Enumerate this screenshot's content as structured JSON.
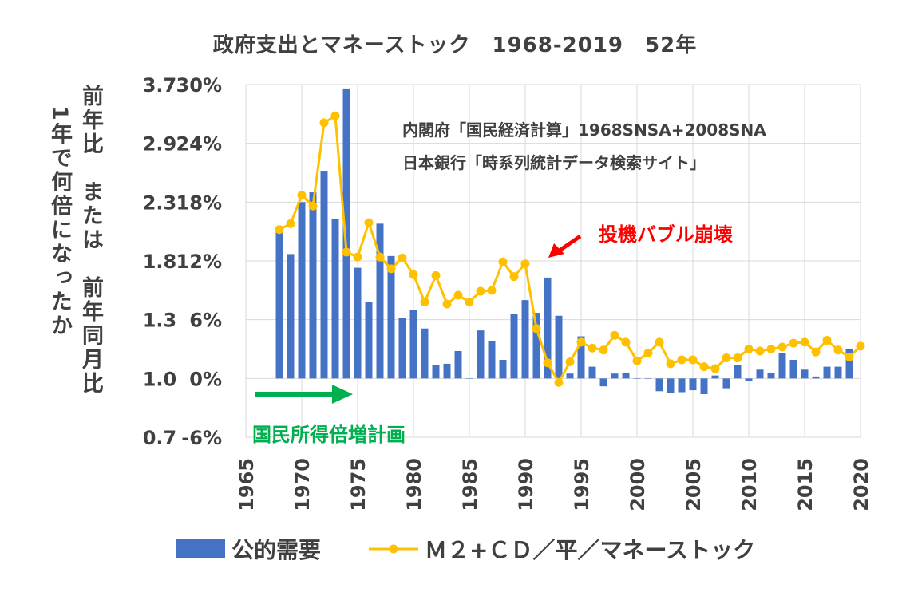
{
  "chart_data": {
    "type": "bar",
    "title": "政府支出とマネーストック　1968-2019　52年",
    "y_left_label_1": "1年で何倍になったか",
    "y_left_label_2": "前年比　または　前年同月比",
    "y_ratio_ticks": [
      "0.7",
      "1.0",
      "1.3",
      "1.8",
      "2.3",
      "2.9",
      "3.7"
    ],
    "y_percent_ticks": [
      "-6%",
      "0%",
      "6%",
      "12%",
      "18%",
      "24%",
      "30%"
    ],
    "ylim": [
      -6,
      30
    ],
    "xlim": [
      1965,
      2020
    ],
    "x_ticks": [
      "1965",
      "1970",
      "1975",
      "1980",
      "1985",
      "1990",
      "1995",
      "2000",
      "2005",
      "2010",
      "2015",
      "2020"
    ],
    "grid": true,
    "legend_position": "bottom",
    "source_note_1": "内閣府「国民経済計算」1968SNSA+2008SNA",
    "source_note_2": "日本銀行「時系列統計データ検索サイト」",
    "annotations": {
      "bubble": "投機バブル崩壊",
      "income_plan": "国民所得倍増計画"
    },
    "colors": {
      "bars": "#4472C4",
      "line": "#FFC000",
      "bubble_text": "#FF0000",
      "plan": "#00B050",
      "grid": "#D9D9D9"
    },
    "series": [
      {
        "name": "公的需要",
        "type": "bar",
        "x": [
          1968,
          1969,
          1970,
          1971,
          1972,
          1973,
          1974,
          1975,
          1976,
          1977,
          1978,
          1979,
          1980,
          1981,
          1982,
          1983,
          1984,
          1985,
          1986,
          1987,
          1988,
          1989,
          1990,
          1991,
          1992,
          1993,
          1994,
          1995,
          1996,
          1997,
          1998,
          1999,
          2000,
          2001,
          2002,
          2003,
          2004,
          2005,
          2006,
          2007,
          2008,
          2009,
          2010,
          2011,
          2012,
          2013,
          2014,
          2015,
          2016,
          2017,
          2018,
          2019
        ],
        "values": [
          15.0,
          12.7,
          18.0,
          19.0,
          21.2,
          16.3,
          29.6,
          11.3,
          7.8,
          15.8,
          12.5,
          6.2,
          7.0,
          5.1,
          1.4,
          1.5,
          2.8,
          0.0,
          4.9,
          3.8,
          1.9,
          6.6,
          8.0,
          6.7,
          10.3,
          6.4,
          0.5,
          4.3,
          1.2,
          -0.8,
          0.5,
          0.6,
          0.0,
          0.0,
          -1.3,
          -1.5,
          -1.4,
          -1.2,
          -1.6,
          0.3,
          -1.0,
          1.4,
          -0.3,
          0.9,
          0.6,
          2.6,
          1.9,
          0.9,
          0.2,
          1.2,
          1.2,
          3.0
        ]
      },
      {
        "name": "Ｍ２+ＣＤ／平／マネーストック",
        "type": "line",
        "x": [
          1968,
          1969,
          1970,
          1971,
          1972,
          1973,
          1974,
          1975,
          1976,
          1977,
          1978,
          1979,
          1980,
          1981,
          1982,
          1983,
          1984,
          1985,
          1986,
          1987,
          1988,
          1989,
          1990,
          1991,
          1992,
          1993,
          1994,
          1995,
          1996,
          1997,
          1998,
          1999,
          2000,
          2001,
          2002,
          2003,
          2004,
          2005,
          2006,
          2007,
          2008,
          2009,
          2010,
          2011,
          2012,
          2013,
          2014,
          2015,
          2016,
          2017,
          2018,
          2019,
          2020
        ],
        "values": [
          15.2,
          15.8,
          18.7,
          17.6,
          26.1,
          26.8,
          12.9,
          12.4,
          15.9,
          12.4,
          11.2,
          12.3,
          10.6,
          7.8,
          10.5,
          7.6,
          8.5,
          7.8,
          8.9,
          9.0,
          11.9,
          10.4,
          11.7,
          5.1,
          1.6,
          -0.4,
          1.7,
          3.7,
          3.1,
          2.9,
          4.4,
          3.7,
          1.8,
          2.6,
          3.7,
          1.5,
          1.9,
          1.9,
          1.2,
          1.0,
          2.1,
          2.1,
          3.0,
          2.8,
          3.0,
          3.2,
          3.6,
          3.7,
          2.7,
          3.9,
          2.9,
          2.2,
          3.3
        ]
      }
    ]
  }
}
